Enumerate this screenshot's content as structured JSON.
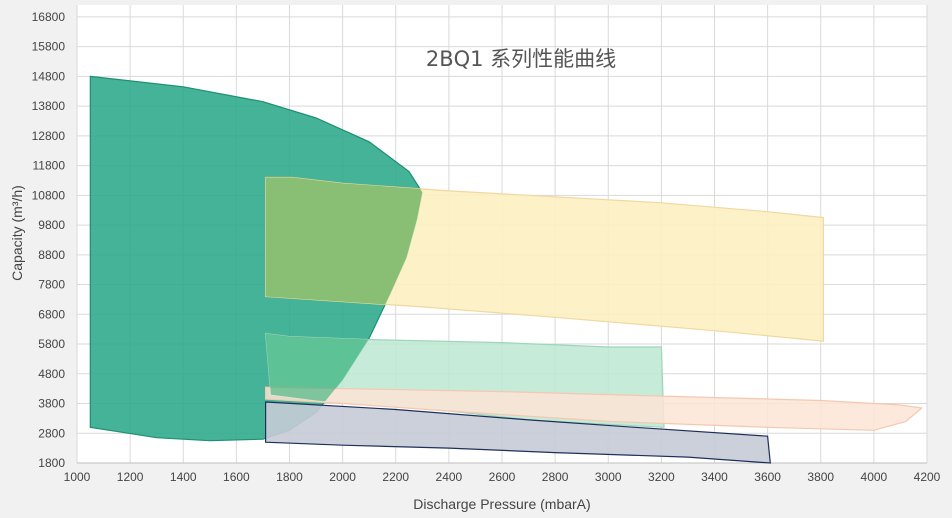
{
  "chart_data": {
    "type": "area",
    "title": "2BQ1 系列性能曲线",
    "xlabel": "Discharge Pressure (mbarA)",
    "ylabel": "Capacity (m³/h)",
    "xlim": [
      1000,
      4200
    ],
    "ylim": [
      1800,
      17200
    ],
    "x_ticks": [
      "1000",
      "1200",
      "1400",
      "1600",
      "1800",
      "2000",
      "2200",
      "2400",
      "2600",
      "2800",
      "3000",
      "3200",
      "3400",
      "3600",
      "3800",
      "4000",
      "4200"
    ],
    "y_ticks": [
      "1800",
      "2800",
      "3800",
      "4800",
      "5800",
      "6800",
      "7800",
      "8800",
      "9800",
      "10800",
      "11800",
      "12800",
      "13800",
      "14800",
      "15800",
      "16800"
    ],
    "grid": true,
    "legend": "none",
    "colors": {
      "series_1_fill": "#2aa889",
      "series_1_stroke": "#1f8f74",
      "series_2_fill": "#fdf0c2",
      "series_2_stroke": "#f0d8a0",
      "series_3_fill": "#bde8d2",
      "series_3_stroke": "#9ed6bb",
      "series_4_fill": "#fde4d6",
      "series_4_stroke": "#f4c8b0",
      "series_5_fill": "#c7cbd6",
      "series_5_stroke": "#1f2f5a",
      "overlap_fill": "#7dba6c"
    },
    "series": [
      {
        "points": [
          [
            1050,
            14800
          ],
          [
            1400,
            14450
          ],
          [
            1700,
            13950
          ],
          [
            1900,
            13400
          ],
          [
            2100,
            12600
          ],
          [
            2250,
            11600
          ],
          [
            2300,
            10900
          ],
          [
            2280,
            10000
          ],
          [
            2240,
            8700
          ],
          [
            2180,
            7500
          ],
          [
            2100,
            6000
          ],
          [
            2000,
            4600
          ],
          [
            1900,
            3500
          ],
          [
            1800,
            2900
          ],
          [
            1700,
            2600
          ],
          [
            1500,
            2550
          ],
          [
            1300,
            2650
          ],
          [
            1050,
            3000
          ]
        ]
      },
      {
        "points": [
          [
            1710,
            11400
          ],
          [
            1810,
            11400
          ],
          [
            2000,
            11200
          ],
          [
            2400,
            10950
          ],
          [
            2800,
            10750
          ],
          [
            3200,
            10550
          ],
          [
            3600,
            10250
          ],
          [
            3810,
            10050
          ],
          [
            3810,
            5900
          ],
          [
            3400,
            6250
          ],
          [
            2800,
            6700
          ],
          [
            2300,
            7050
          ],
          [
            1710,
            7400
          ]
        ]
      },
      {
        "points": [
          [
            1710,
            6150
          ],
          [
            1800,
            6050
          ],
          [
            2100,
            5950
          ],
          [
            2600,
            5850
          ],
          [
            3000,
            5700
          ],
          [
            3200,
            5700
          ],
          [
            3210,
            3000
          ],
          [
            3000,
            3100
          ],
          [
            2700,
            3250
          ],
          [
            2400,
            3550
          ],
          [
            2100,
            3750
          ],
          [
            1900,
            3900
          ],
          [
            1730,
            4100
          ]
        ]
      },
      {
        "points": [
          [
            1710,
            4350
          ],
          [
            2000,
            4300
          ],
          [
            2600,
            4200
          ],
          [
            3200,
            4050
          ],
          [
            3800,
            3900
          ],
          [
            4100,
            3750
          ],
          [
            4180,
            3650
          ],
          [
            4120,
            3200
          ],
          [
            4000,
            2900
          ],
          [
            3600,
            3000
          ],
          [
            3000,
            3200
          ],
          [
            2400,
            3550
          ],
          [
            2000,
            3800
          ],
          [
            1710,
            3950
          ]
        ]
      },
      {
        "points": [
          [
            1710,
            3850
          ],
          [
            2200,
            3600
          ],
          [
            2700,
            3250
          ],
          [
            3100,
            3000
          ],
          [
            3600,
            2700
          ],
          [
            3610,
            1800
          ],
          [
            3300,
            2000
          ],
          [
            2800,
            2150
          ],
          [
            2400,
            2300
          ],
          [
            2000,
            2400
          ],
          [
            1710,
            2500
          ]
        ]
      }
    ]
  }
}
